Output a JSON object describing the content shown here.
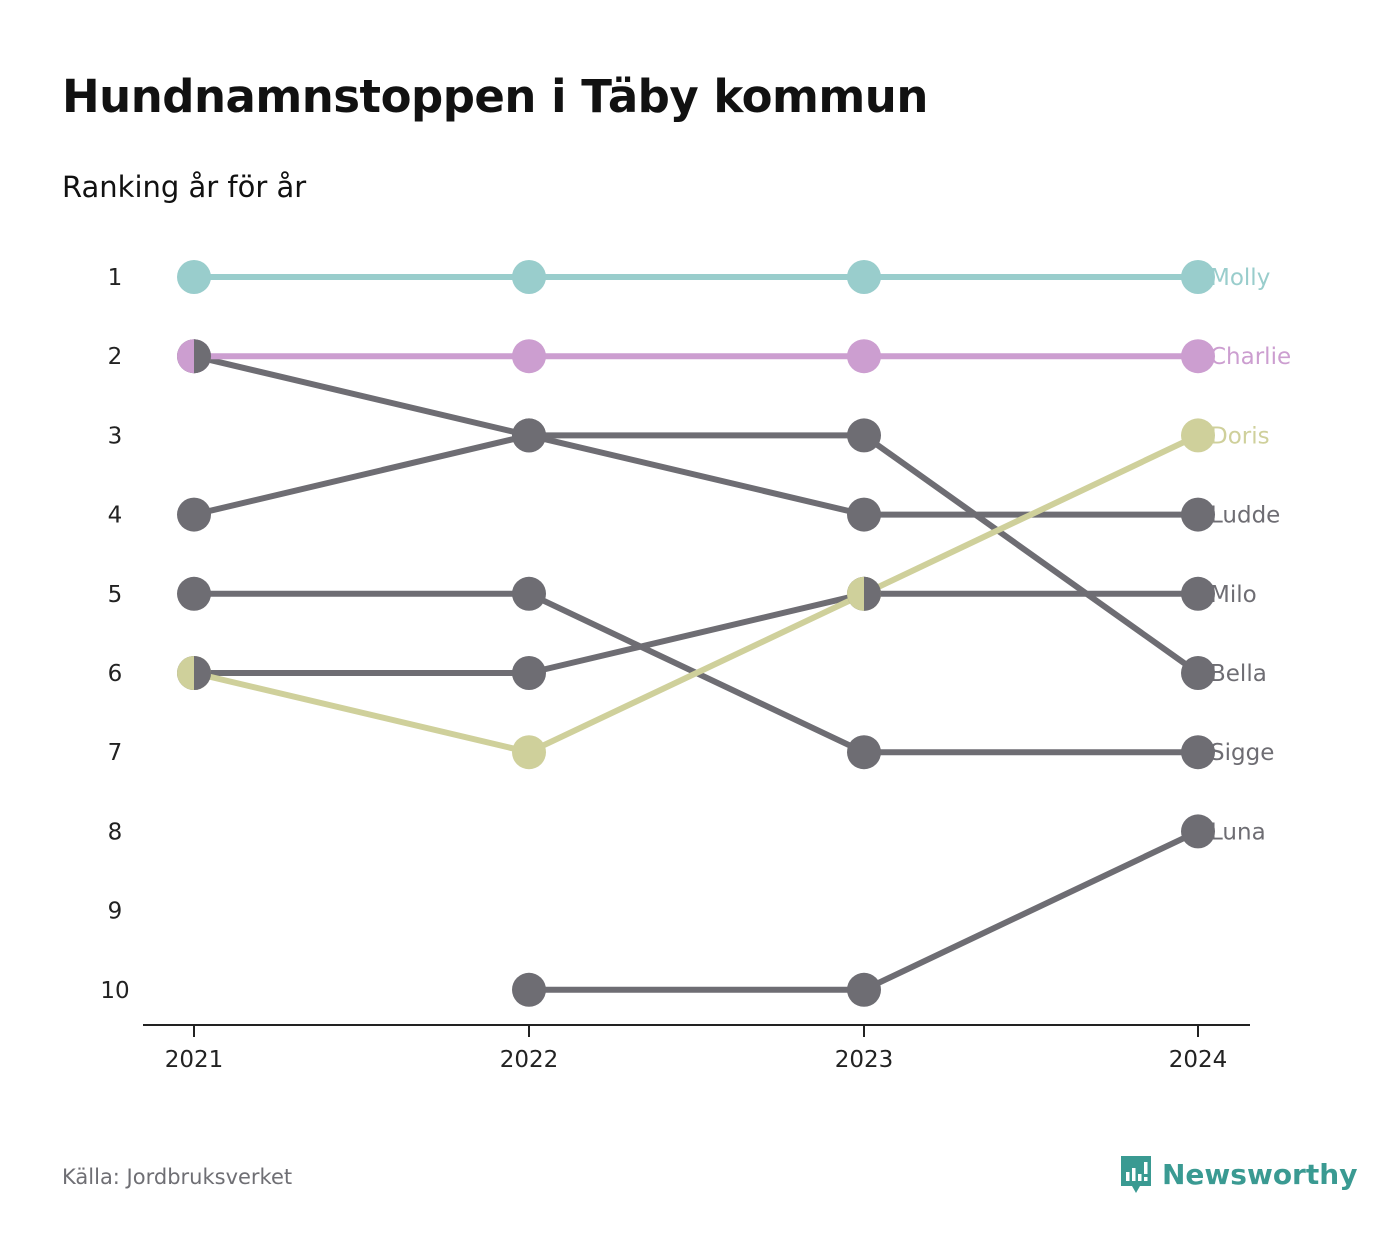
{
  "title": "Hundnamnstoppen i Täby kommun",
  "subtitle": "Ranking år för år",
  "source": "Källa: Jordbruksverket",
  "brand": {
    "name": "Newsworthy",
    "icon": "newsworthy-logo-icon",
    "color": "#3a9a92"
  },
  "colors": {
    "gray": "#6e6d73",
    "axis": "#222222"
  },
  "chart_data": {
    "type": "line",
    "x": [
      "2021",
      "2022",
      "2023",
      "2024"
    ],
    "y_ticks": [
      "1",
      "2",
      "3",
      "4",
      "5",
      "6",
      "7",
      "8",
      "9",
      "10"
    ],
    "ylim": [
      1,
      10
    ],
    "y_inverted": true,
    "grid": false,
    "legend": "end-labels",
    "series": [
      {
        "name": "Luna",
        "values": [
          null,
          10,
          10,
          8
        ],
        "color": "#6e6d73"
      },
      {
        "name": "Sigge",
        "values": [
          5,
          5,
          7,
          7
        ],
        "color": "#6e6d73"
      },
      {
        "name": "Bella",
        "values": [
          4,
          3,
          3,
          6
        ],
        "color": "#6e6d73"
      },
      {
        "name": "Milo",
        "values": [
          6,
          6,
          5,
          5
        ],
        "color": "#6e6d73"
      },
      {
        "name": "Ludde",
        "values": [
          2,
          3,
          4,
          4
        ],
        "color": "#6e6d73"
      },
      {
        "name": "Doris",
        "values": [
          6,
          7,
          5,
          3
        ],
        "color": "#cfd09b"
      },
      {
        "name": "Charlie",
        "values": [
          2,
          2,
          2,
          2
        ],
        "color": "#cc9ed0"
      },
      {
        "name": "Molly",
        "values": [
          1,
          1,
          1,
          1
        ],
        "color": "#99cdcc"
      }
    ]
  }
}
